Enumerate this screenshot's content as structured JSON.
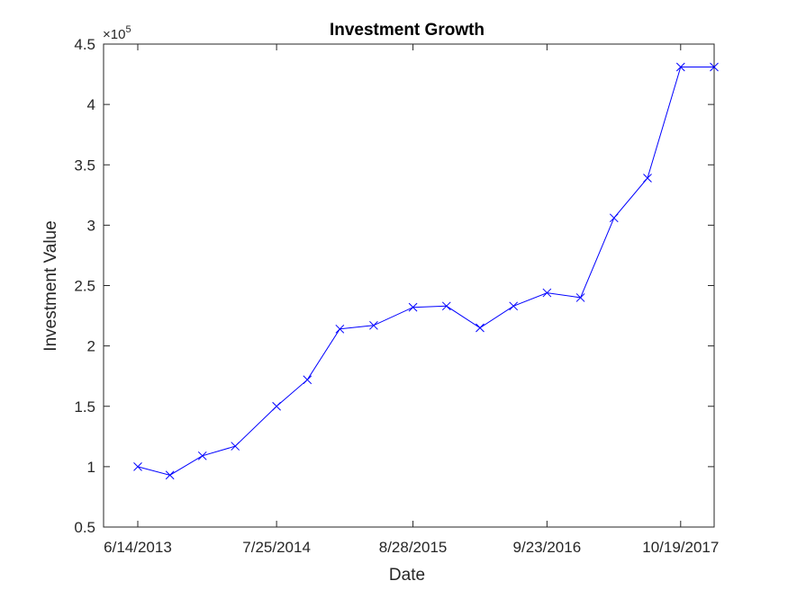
{
  "chart_data": {
    "type": "line",
    "title": "Investment Growth",
    "xlabel": "Date",
    "ylabel": "Investment Value",
    "y_exponent_base": "×10",
    "y_exponent_power": "5",
    "ylim": [
      0.5,
      4.5
    ],
    "y_ticks": [
      0.5,
      1,
      1.5,
      2,
      2.5,
      3,
      3.5,
      4,
      4.5
    ],
    "y_tick_labels": [
      "0.5",
      "1",
      "1.5",
      "2",
      "2.5",
      "3",
      "3.5",
      "4",
      "4.5"
    ],
    "x_tick_labels": [
      "6/14/2013",
      "7/25/2014",
      "8/28/2015",
      "9/23/2016",
      "10/19/2017"
    ],
    "grid": false,
    "series": [
      {
        "color": "#0000ff",
        "marker": "x",
        "x": [
          "6/14/2013",
          "9/16/2013",
          "12/20/2013",
          "3/26/2014",
          "7/25/2014",
          "10/23/2014",
          "1/26/2015",
          "5/5/2015",
          "8/28/2015",
          "12/4/2015",
          "3/11/2016",
          "6/17/2016",
          "9/23/2016",
          "12/30/2016",
          "4/7/2017",
          "7/14/2017",
          "10/19/2017",
          "1/25/2018"
        ],
        "values": [
          1.0,
          0.93,
          1.09,
          1.17,
          1.5,
          1.72,
          2.14,
          2.17,
          2.32,
          2.33,
          2.15,
          2.33,
          2.44,
          2.4,
          3.06,
          3.39,
          4.31,
          4.31
        ]
      }
    ]
  }
}
